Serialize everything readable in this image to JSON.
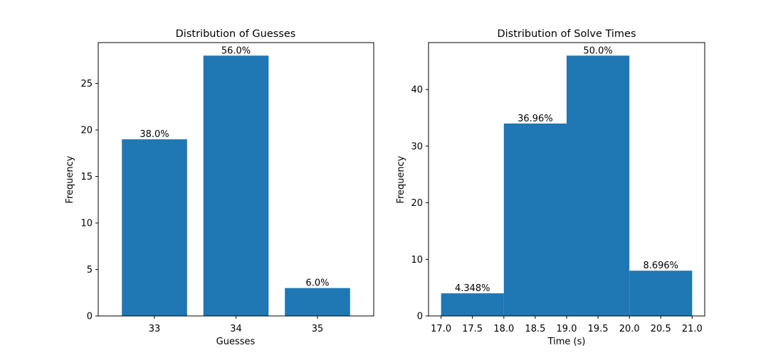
{
  "chart_data": [
    {
      "type": "bar",
      "title": "Distribution of Guesses",
      "xlabel": "Guesses",
      "ylabel": "Frequency",
      "categories": [
        "33",
        "34",
        "35"
      ],
      "values": [
        19,
        28,
        3
      ],
      "data_labels": [
        "38.0%",
        "56.0%",
        "6.0%"
      ],
      "ylim": [
        0,
        29.4
      ],
      "yticks": [
        0,
        5,
        10,
        15,
        20,
        25
      ],
      "bar_color": "#1f77b4",
      "grid": false
    },
    {
      "type": "bar",
      "subtype": "histogram",
      "title": "Distribution of Solve Times",
      "xlabel": "Time (s)",
      "ylabel": "Frequency",
      "bins": [
        {
          "start": 17.0,
          "end": 18.0,
          "value": 4
        },
        {
          "start": 18.0,
          "end": 19.0,
          "value": 34
        },
        {
          "start": 19.0,
          "end": 20.0,
          "value": 46
        },
        {
          "start": 20.0,
          "end": 21.0,
          "value": 8
        }
      ],
      "data_labels": [
        "4.348%",
        "36.96%",
        "50.0%",
        "8.696%"
      ],
      "xlim": [
        16.8,
        21.2
      ],
      "ylim": [
        0,
        48.3
      ],
      "xticks": [
        17.0,
        17.5,
        18.0,
        18.5,
        19.0,
        19.5,
        20.0,
        20.5,
        21.0
      ],
      "xtick_labels": [
        "17.0",
        "17.5",
        "18.0",
        "18.5",
        "19.0",
        "19.5",
        "20.0",
        "20.5",
        "21.0"
      ],
      "yticks": [
        0,
        10,
        20,
        30,
        40
      ],
      "bar_color": "#1f77b4",
      "grid": false
    }
  ]
}
